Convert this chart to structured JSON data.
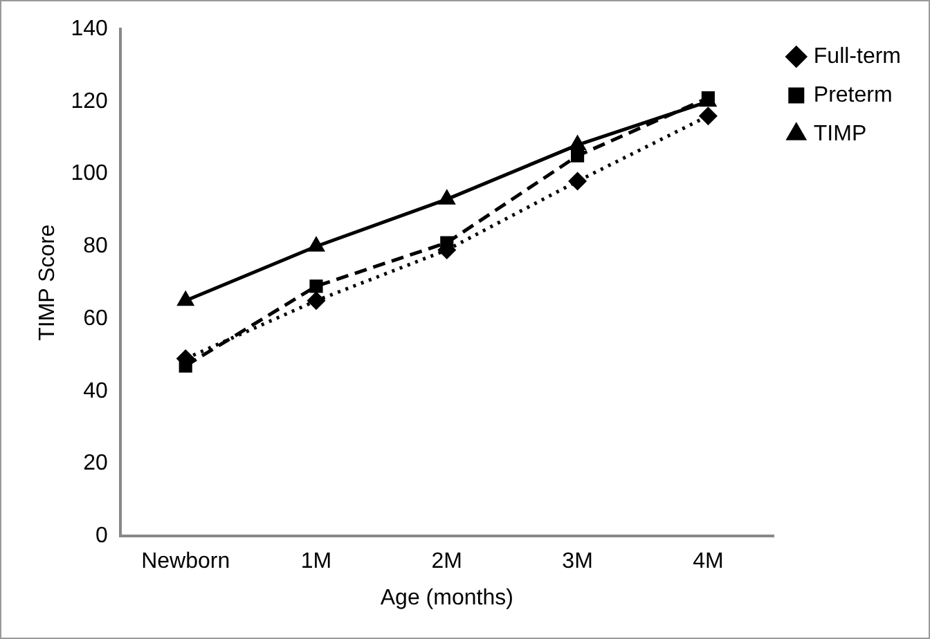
{
  "chart_data": {
    "type": "line",
    "xlabel": "Age (months)",
    "ylabel": "TIMP Score",
    "categories": [
      "Newborn",
      "1M",
      "2M",
      "3M",
      "4M"
    ],
    "series": [
      {
        "name": "Full-term",
        "color": "#000000",
        "values": [
          49,
          65,
          79,
          98,
          116
        ],
        "marker": "diamond",
        "line_style": "dotted"
      },
      {
        "name": "Preterm",
        "color": "#000000",
        "values": [
          47,
          69,
          81,
          105,
          121
        ],
        "marker": "square",
        "line_style": "dashed"
      },
      {
        "name": "TIMP",
        "color": "#000000",
        "values": [
          65,
          80,
          93,
          108,
          120
        ],
        "marker": "triangle",
        "line_style": "solid"
      }
    ],
    "ylim": [
      0,
      140
    ],
    "yticks": [
      0,
      20,
      40,
      60,
      80,
      100,
      120,
      140
    ],
    "grid": false,
    "legend": "top right"
  }
}
